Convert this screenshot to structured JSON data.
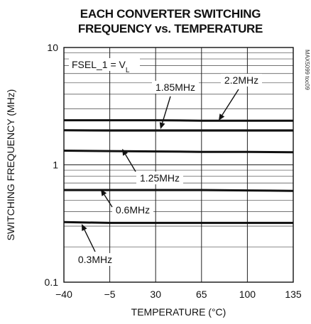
{
  "chart_data": {
    "type": "line",
    "title_line1": "EACH CONVERTER SWITCHING",
    "title_line2": "FREQUENCY vs. TEMPERATURE",
    "xlabel": "TEMPERATURE (°C)",
    "ylabel": "SWITCHING FREQUENCY (MHz)",
    "xlim": [
      -40,
      135
    ],
    "ylim": [
      0.1,
      10
    ],
    "yscale": "log",
    "x_ticks": [
      -40,
      -5,
      30,
      65,
      100,
      135
    ],
    "y_ticks": [
      {
        "value": 0.1,
        "label": "0.1"
      },
      {
        "value": 1,
        "label": "1"
      },
      {
        "value": 10,
        "label": "10"
      }
    ],
    "grid": true,
    "condition_prefix": "FSEL_1 = V",
    "condition_sub": "L",
    "side_code": "MAX5099 toc09",
    "x": [
      -40,
      -5,
      30,
      65,
      100,
      135
    ],
    "series": [
      {
        "name": "2.2MHz",
        "values": [
          2.4,
          2.4,
          2.4,
          2.38,
          2.38,
          2.38
        ]
      },
      {
        "name": "1.85MHz",
        "values": [
          1.97,
          1.96,
          1.96,
          1.96,
          1.96,
          1.96
        ]
      },
      {
        "name": "1.25MHz",
        "values": [
          1.32,
          1.31,
          1.3,
          1.29,
          1.29,
          1.28
        ]
      },
      {
        "name": "0.6MHz",
        "values": [
          0.61,
          0.61,
          0.61,
          0.61,
          0.605,
          0.6
        ]
      },
      {
        "name": "0.3MHz",
        "values": [
          0.325,
          0.32,
          0.32,
          0.32,
          0.32,
          0.32
        ]
      }
    ]
  }
}
